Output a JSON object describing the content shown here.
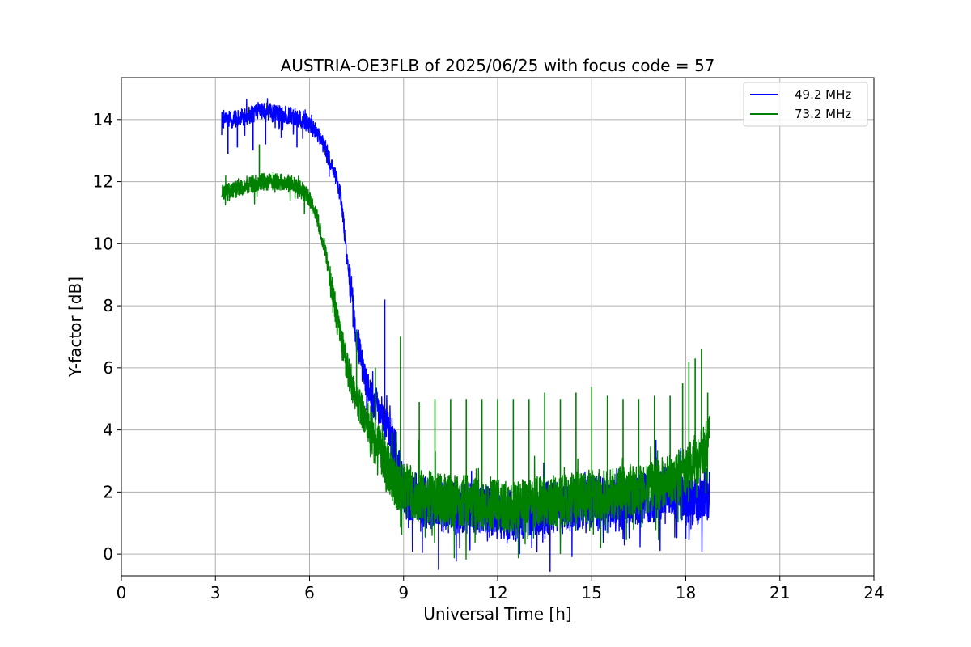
{
  "chart_data": {
    "type": "line",
    "title": "AUSTRIA-OE3FLB of 2025/06/25 with focus code = 57",
    "xlabel": "Universal Time [h]",
    "ylabel": "Y-factor [dB]",
    "xlim": [
      0,
      24
    ],
    "ylim": [
      -0.7,
      15.35
    ],
    "xticks": [
      0,
      3,
      6,
      9,
      12,
      15,
      18,
      21,
      24
    ],
    "xtick_labels": [
      "0",
      "3",
      "6",
      "9",
      "12",
      "15",
      "18",
      "21",
      "24"
    ],
    "yticks": [
      0,
      2,
      4,
      6,
      8,
      10,
      12,
      14
    ],
    "ytick_labels": [
      "0",
      "2",
      "4",
      "6",
      "8",
      "10",
      "12",
      "14"
    ],
    "grid": true,
    "legend_position": "top-right",
    "series": [
      {
        "name": "49.2 MHz",
        "color": "#0000ff",
        "x": [
          3.2,
          3.5,
          4.0,
          4.5,
          5.0,
          5.5,
          5.9,
          6.2,
          6.5,
          6.8,
          7.0,
          7.2,
          7.5,
          7.8,
          8.0,
          8.3,
          8.5,
          8.8,
          9.0,
          9.5,
          10.0,
          10.5,
          11.0,
          11.5,
          12.0,
          12.5,
          13.0,
          13.5,
          14.0,
          14.5,
          15.0,
          15.5,
          16.0,
          16.5,
          17.0,
          17.5,
          17.9,
          18.2,
          18.5,
          18.75
        ],
        "y": [
          14.0,
          14.0,
          14.1,
          14.3,
          14.2,
          14.1,
          13.9,
          13.6,
          13.1,
          12.3,
          11.5,
          9.5,
          7.0,
          5.5,
          5.0,
          4.6,
          4.2,
          3.0,
          2.0,
          1.7,
          1.6,
          1.5,
          1.5,
          1.4,
          1.3,
          1.2,
          1.4,
          1.5,
          1.5,
          1.6,
          1.7,
          1.6,
          1.7,
          1.8,
          1.9,
          2.0,
          1.9,
          1.6,
          1.8,
          2.0
        ],
        "spikes": [
          [
            3.4,
            12.9
          ],
          [
            3.7,
            13.1
          ],
          [
            4.2,
            13.0
          ],
          [
            4.6,
            13.2
          ],
          [
            5.1,
            13.4
          ],
          [
            5.6,
            13.1
          ],
          [
            7.1,
            10.8
          ],
          [
            8.4,
            8.2
          ],
          [
            12.7,
            0.0
          ],
          [
            18.0,
            0.5
          ]
        ]
      },
      {
        "name": "73.2 MHz",
        "color": "#008000",
        "x": [
          3.2,
          3.5,
          4.0,
          4.5,
          5.0,
          5.5,
          5.9,
          6.2,
          6.5,
          6.8,
          7.0,
          7.2,
          7.5,
          7.8,
          8.0,
          8.3,
          8.5,
          8.8,
          9.0,
          9.5,
          10.0,
          10.5,
          11.0,
          11.5,
          12.0,
          12.5,
          13.0,
          13.5,
          14.0,
          14.5,
          15.0,
          15.5,
          16.0,
          16.5,
          17.0,
          17.5,
          17.9,
          18.2,
          18.5,
          18.75
        ],
        "y": [
          11.6,
          11.7,
          11.9,
          12.0,
          12.0,
          11.9,
          11.6,
          11.0,
          9.8,
          8.0,
          7.0,
          6.0,
          5.0,
          4.3,
          3.8,
          3.2,
          2.7,
          2.3,
          2.1,
          1.9,
          1.8,
          1.7,
          1.7,
          1.6,
          1.6,
          1.5,
          1.6,
          1.7,
          1.7,
          1.8,
          1.9,
          1.9,
          2.0,
          2.1,
          2.2,
          2.4,
          2.6,
          2.9,
          3.3,
          3.7
        ],
        "spikes": [
          [
            4.4,
            13.2
          ],
          [
            7.5,
            7.2
          ],
          [
            8.1,
            6.0
          ],
          [
            8.9,
            7.0
          ],
          [
            9.5,
            4.9
          ],
          [
            10.0,
            5.0
          ],
          [
            10.5,
            5.0
          ],
          [
            11.0,
            5.0
          ],
          [
            11.5,
            5.0
          ],
          [
            12.0,
            5.0
          ],
          [
            12.5,
            5.0
          ],
          [
            13.0,
            5.0
          ],
          [
            13.5,
            5.2
          ],
          [
            14.0,
            5.0
          ],
          [
            14.5,
            5.2
          ],
          [
            15.0,
            5.4
          ],
          [
            15.5,
            5.1
          ],
          [
            16.0,
            5.0
          ],
          [
            16.5,
            5.0
          ],
          [
            17.0,
            5.1
          ],
          [
            17.5,
            5.1
          ],
          [
            17.9,
            5.5
          ],
          [
            18.1,
            6.2
          ],
          [
            18.3,
            6.3
          ],
          [
            18.5,
            6.6
          ],
          [
            18.7,
            5.2
          ]
        ]
      }
    ]
  }
}
